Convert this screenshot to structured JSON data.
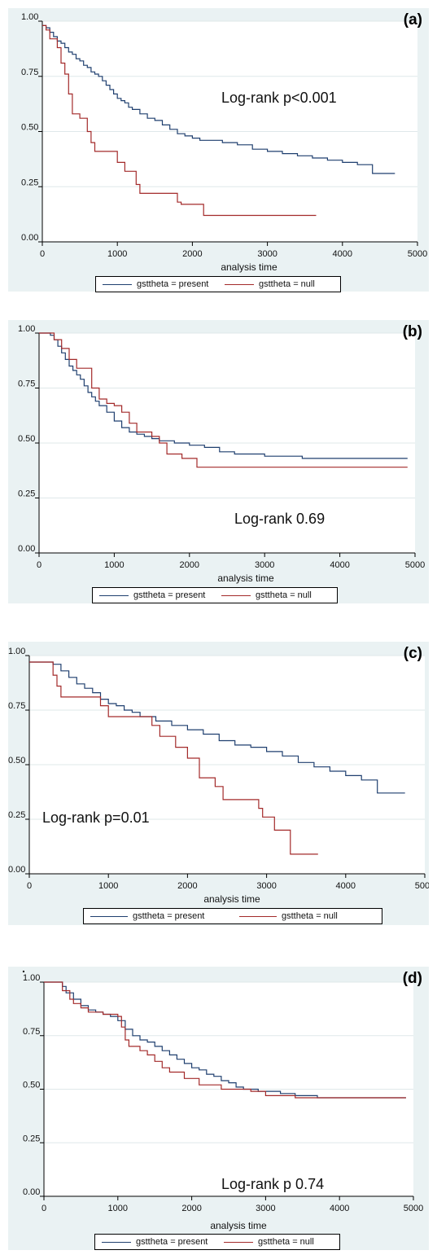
{
  "colors": {
    "present": "#1f3f6f",
    "null": "#a32a2a",
    "panel_bg": "#eaf2f3",
    "plot_bg": "#ffffff"
  },
  "legend": {
    "present": "gsttheta = present",
    "null": "gsttheta = null"
  },
  "xlabel": "analysis time",
  "y_ticks": [
    "0.00",
    "0.25",
    "0.50",
    "0.75",
    "1.00"
  ],
  "x_ticks": [
    "0",
    "1000",
    "2000",
    "3000",
    "4000",
    "5000"
  ],
  "panels": [
    {
      "label": "(a)",
      "annotation": "Log-rank p<0.001"
    },
    {
      "label": "(b)",
      "annotation": "Log-rank 0.69"
    },
    {
      "label": "(c)",
      "annotation": "Log-rank p=0.01"
    },
    {
      "label": "(d)",
      "annotation": "Log-rank p 0.74"
    }
  ],
  "chart_data": [
    {
      "type": "line",
      "step": true,
      "ylim": [
        0,
        1
      ],
      "xlim": [
        0,
        5000
      ],
      "grid": true,
      "xlabel": "analysis time",
      "legend_position": "bottom",
      "series": [
        {
          "name": "gsttheta = present",
          "x": [
            0,
            50,
            100,
            150,
            200,
            250,
            300,
            350,
            400,
            450,
            500,
            550,
            600,
            650,
            700,
            750,
            800,
            850,
            900,
            950,
            1000,
            1050,
            1100,
            1150,
            1200,
            1300,
            1400,
            1500,
            1600,
            1700,
            1800,
            1900,
            2000,
            2100,
            2200,
            2400,
            2600,
            2800,
            3000,
            3200,
            3400,
            3600,
            3800,
            4000,
            4200,
            4400,
            4700
          ],
          "y": [
            0.98,
            0.97,
            0.95,
            0.93,
            0.91,
            0.9,
            0.88,
            0.86,
            0.85,
            0.83,
            0.82,
            0.8,
            0.79,
            0.77,
            0.76,
            0.75,
            0.73,
            0.71,
            0.69,
            0.67,
            0.65,
            0.64,
            0.63,
            0.61,
            0.6,
            0.58,
            0.56,
            0.55,
            0.53,
            0.51,
            0.49,
            0.48,
            0.47,
            0.46,
            0.46,
            0.45,
            0.44,
            0.42,
            0.41,
            0.4,
            0.39,
            0.38,
            0.37,
            0.36,
            0.35,
            0.31,
            0.31
          ]
        },
        {
          "name": "gsttheta = null",
          "x": [
            0,
            50,
            100,
            200,
            250,
            300,
            350,
            400,
            500,
            600,
            650,
            700,
            1000,
            1100,
            1250,
            1300,
            1800,
            1850,
            2150,
            3650
          ],
          "y": [
            0.98,
            0.96,
            0.92,
            0.88,
            0.81,
            0.76,
            0.67,
            0.58,
            0.56,
            0.5,
            0.45,
            0.41,
            0.36,
            0.32,
            0.26,
            0.22,
            0.18,
            0.17,
            0.12,
            0.12
          ]
        }
      ]
    },
    {
      "type": "line",
      "step": true,
      "ylim": [
        0,
        1
      ],
      "xlim": [
        0,
        5000
      ],
      "grid": true,
      "xlabel": "analysis time",
      "legend_position": "bottom",
      "series": [
        {
          "name": "gsttheta = present",
          "x": [
            0,
            150,
            200,
            250,
            300,
            350,
            400,
            450,
            500,
            550,
            600,
            650,
            700,
            750,
            800,
            900,
            1000,
            1100,
            1200,
            1300,
            1400,
            1500,
            1600,
            1800,
            2000,
            2200,
            2400,
            2600,
            2800,
            3000,
            3500,
            4900
          ],
          "y": [
            1.0,
            0.99,
            0.97,
            0.94,
            0.91,
            0.88,
            0.85,
            0.83,
            0.81,
            0.79,
            0.76,
            0.73,
            0.71,
            0.69,
            0.67,
            0.64,
            0.6,
            0.57,
            0.55,
            0.54,
            0.53,
            0.52,
            0.51,
            0.5,
            0.49,
            0.48,
            0.46,
            0.45,
            0.45,
            0.44,
            0.43,
            0.43
          ]
        },
        {
          "name": "gsttheta = null",
          "x": [
            0,
            200,
            300,
            400,
            500,
            600,
            700,
            800,
            900,
            1000,
            1100,
            1200,
            1300,
            1400,
            1500,
            1600,
            1700,
            1900,
            2100,
            4900
          ],
          "y": [
            1.0,
            0.97,
            0.93,
            0.88,
            0.84,
            0.84,
            0.75,
            0.7,
            0.68,
            0.67,
            0.64,
            0.59,
            0.55,
            0.55,
            0.53,
            0.5,
            0.45,
            0.43,
            0.39,
            0.39
          ]
        }
      ]
    },
    {
      "type": "line",
      "step": true,
      "ylim": [
        0,
        1
      ],
      "xlim": [
        0,
        5000
      ],
      "grid": true,
      "xlabel": "analysis time",
      "legend_position": "bottom",
      "series": [
        {
          "name": "gsttheta = present",
          "x": [
            0,
            300,
            400,
            500,
            600,
            700,
            800,
            900,
            1000,
            1100,
            1200,
            1300,
            1400,
            1600,
            1800,
            2000,
            2200,
            2400,
            2600,
            2800,
            3000,
            3200,
            3400,
            3600,
            3800,
            4000,
            4200,
            4400,
            4750
          ],
          "y": [
            0.97,
            0.96,
            0.93,
            0.9,
            0.87,
            0.85,
            0.83,
            0.8,
            0.78,
            0.77,
            0.75,
            0.74,
            0.72,
            0.7,
            0.68,
            0.66,
            0.64,
            0.61,
            0.59,
            0.58,
            0.56,
            0.54,
            0.51,
            0.49,
            0.47,
            0.45,
            0.43,
            0.37,
            0.37
          ]
        },
        {
          "name": "gsttheta = null",
          "x": [
            0,
            300,
            350,
            400,
            900,
            1000,
            1550,
            1650,
            1850,
            2000,
            2150,
            2350,
            2450,
            2900,
            2950,
            3100,
            3300,
            3650
          ],
          "y": [
            0.97,
            0.91,
            0.86,
            0.81,
            0.77,
            0.72,
            0.68,
            0.63,
            0.58,
            0.53,
            0.44,
            0.4,
            0.34,
            0.3,
            0.26,
            0.2,
            0.09,
            0.09
          ]
        }
      ]
    },
    {
      "type": "line",
      "step": true,
      "ylim": [
        0,
        1
      ],
      "xlim": [
        0,
        5000
      ],
      "grid": true,
      "xlabel": "analysis time",
      "legend_position": "bottom",
      "series": [
        {
          "name": "gsttheta = present",
          "x": [
            0,
            250,
            300,
            400,
            500,
            600,
            700,
            800,
            900,
            1000,
            1100,
            1200,
            1300,
            1400,
            1500,
            1600,
            1700,
            1800,
            1900,
            2000,
            2100,
            2200,
            2300,
            2400,
            2500,
            2600,
            2700,
            2800,
            2900,
            3000,
            3200,
            3400,
            3700,
            4900
          ],
          "y": [
            1.0,
            0.98,
            0.95,
            0.92,
            0.89,
            0.87,
            0.86,
            0.85,
            0.84,
            0.82,
            0.78,
            0.75,
            0.73,
            0.72,
            0.7,
            0.68,
            0.66,
            0.64,
            0.62,
            0.6,
            0.59,
            0.57,
            0.56,
            0.54,
            0.53,
            0.51,
            0.5,
            0.5,
            0.49,
            0.49,
            0.48,
            0.47,
            0.46,
            0.46
          ]
        },
        {
          "name": "gsttheta = null",
          "x": [
            0,
            250,
            350,
            400,
            500,
            600,
            800,
            1000,
            1050,
            1100,
            1150,
            1300,
            1400,
            1500,
            1600,
            1700,
            1900,
            2100,
            2400,
            2800,
            3000,
            3400,
            4900
          ],
          "y": [
            1.0,
            0.96,
            0.92,
            0.9,
            0.88,
            0.86,
            0.85,
            0.84,
            0.79,
            0.73,
            0.7,
            0.68,
            0.66,
            0.63,
            0.6,
            0.58,
            0.55,
            0.52,
            0.5,
            0.49,
            0.47,
            0.46,
            0.46
          ]
        }
      ]
    }
  ]
}
